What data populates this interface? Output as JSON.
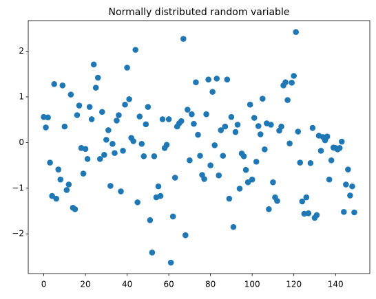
{
  "chart_data": {
    "type": "scatter",
    "title": "Normally distributed random variable",
    "color": "#1f77b4",
    "x": [
      0,
      1,
      2,
      3,
      4,
      5,
      6,
      7,
      8,
      9,
      10,
      11,
      12,
      13,
      14,
      15,
      16,
      17,
      18,
      19,
      20,
      21,
      22,
      23,
      24,
      25,
      26,
      27,
      28,
      29,
      30,
      31,
      32,
      33,
      34,
      35,
      36,
      37,
      38,
      39,
      40,
      41,
      42,
      43,
      44,
      45,
      46,
      47,
      48,
      49,
      50,
      51,
      52,
      53,
      54,
      55,
      56,
      57,
      58,
      59,
      60,
      61,
      62,
      63,
      64,
      65,
      66,
      67,
      68,
      69,
      70,
      71,
      72,
      73,
      74,
      75,
      76,
      77,
      78,
      79,
      80,
      81,
      82,
      83,
      84,
      85,
      86,
      87,
      88,
      89,
      90,
      91,
      92,
      93,
      94,
      95,
      96,
      97,
      98,
      99,
      100,
      101,
      102,
      103,
      104,
      105,
      106,
      107,
      108,
      109,
      110,
      111,
      112,
      113,
      114,
      115,
      116,
      117,
      118,
      119,
      120,
      121,
      122,
      123,
      124,
      125,
      126,
      127,
      128,
      129,
      130,
      131,
      132,
      133,
      134,
      135,
      136,
      137,
      138,
      139,
      140,
      141,
      142,
      143,
      144,
      145,
      146,
      147,
      148,
      149
    ],
    "values": [
      0.56,
      0.33,
      0.55,
      -0.44,
      -1.17,
      1.28,
      -1.23,
      -0.59,
      -0.81,
      1.25,
      0.35,
      -1.04,
      -0.92,
      1.05,
      -1.43,
      -1.46,
      0.6,
      0.81,
      -0.12,
      -0.68,
      -0.14,
      -0.36,
      0.78,
      0.51,
      1.71,
      1.2,
      1.42,
      -0.36,
      0.67,
      -0.27,
      0.06,
      0.27,
      -0.95,
      -0.03,
      -0.23,
      0.48,
      0.6,
      -1.07,
      -0.18,
      0.83,
      1.64,
      0.95,
      0.1,
      0.03,
      2.03,
      -1.31,
      0.57,
      -0.03,
      -0.3,
      0.4,
      0.78,
      -1.7,
      -2.41,
      -0.3,
      -1.2,
      -0.96,
      -1.17,
      0.51,
      -0.12,
      -0.05,
      0.51,
      -2.63,
      -1.62,
      -0.77,
      0.35,
      0.42,
      0.47,
      2.27,
      -2.03,
      0.72,
      -0.39,
      0.62,
      0.41,
      1.32,
      0.17,
      -0.29,
      -0.71,
      -0.8,
      0.62,
      1.38,
      -0.5,
      1.11,
      -0.06,
      1.4,
      -0.72,
      0.27,
      -0.29,
      0.35,
      1.38,
      -1.23,
      0.56,
      -1.85,
      0.23,
      0.39,
      -1.01,
      -0.24,
      -0.3,
      -0.6,
      -0.87,
      0.83,
      -0.81,
      0.54,
      -0.42,
      0.36,
      0.18,
      0.96,
      -0.15,
      0.42,
      -1.46,
      0.39,
      -0.87,
      -1.2,
      -1.28,
      0.26,
      0.35,
      1.25,
      1.32,
      0.93,
      -0.02,
      1.31,
      1.46,
      2.42,
      0.24,
      -0.44,
      -1.29,
      -1.56,
      -1.2,
      -1.55,
      -0.45,
      0.32,
      -1.65,
      -1.59,
      0.15,
      -0.18,
      0.12,
      0.05,
      0.13,
      -0.81,
      -0.39,
      -0.11,
      -0.12,
      -0.15,
      -0.12,
      0.02,
      -1.52,
      -0.92,
      -0.59,
      -1.16,
      -0.96,
      -1.53
    ],
    "xlim": [
      -7.45,
      156.45
    ],
    "xticks": [
      0,
      20,
      40,
      60,
      80,
      100,
      120,
      140
    ],
    "ylim": [
      -2.87,
      2.67
    ],
    "yticks": [
      {
        "value": -2,
        "label": "−2"
      },
      {
        "value": -1,
        "label": "−1"
      },
      0,
      1,
      2
    ]
  }
}
